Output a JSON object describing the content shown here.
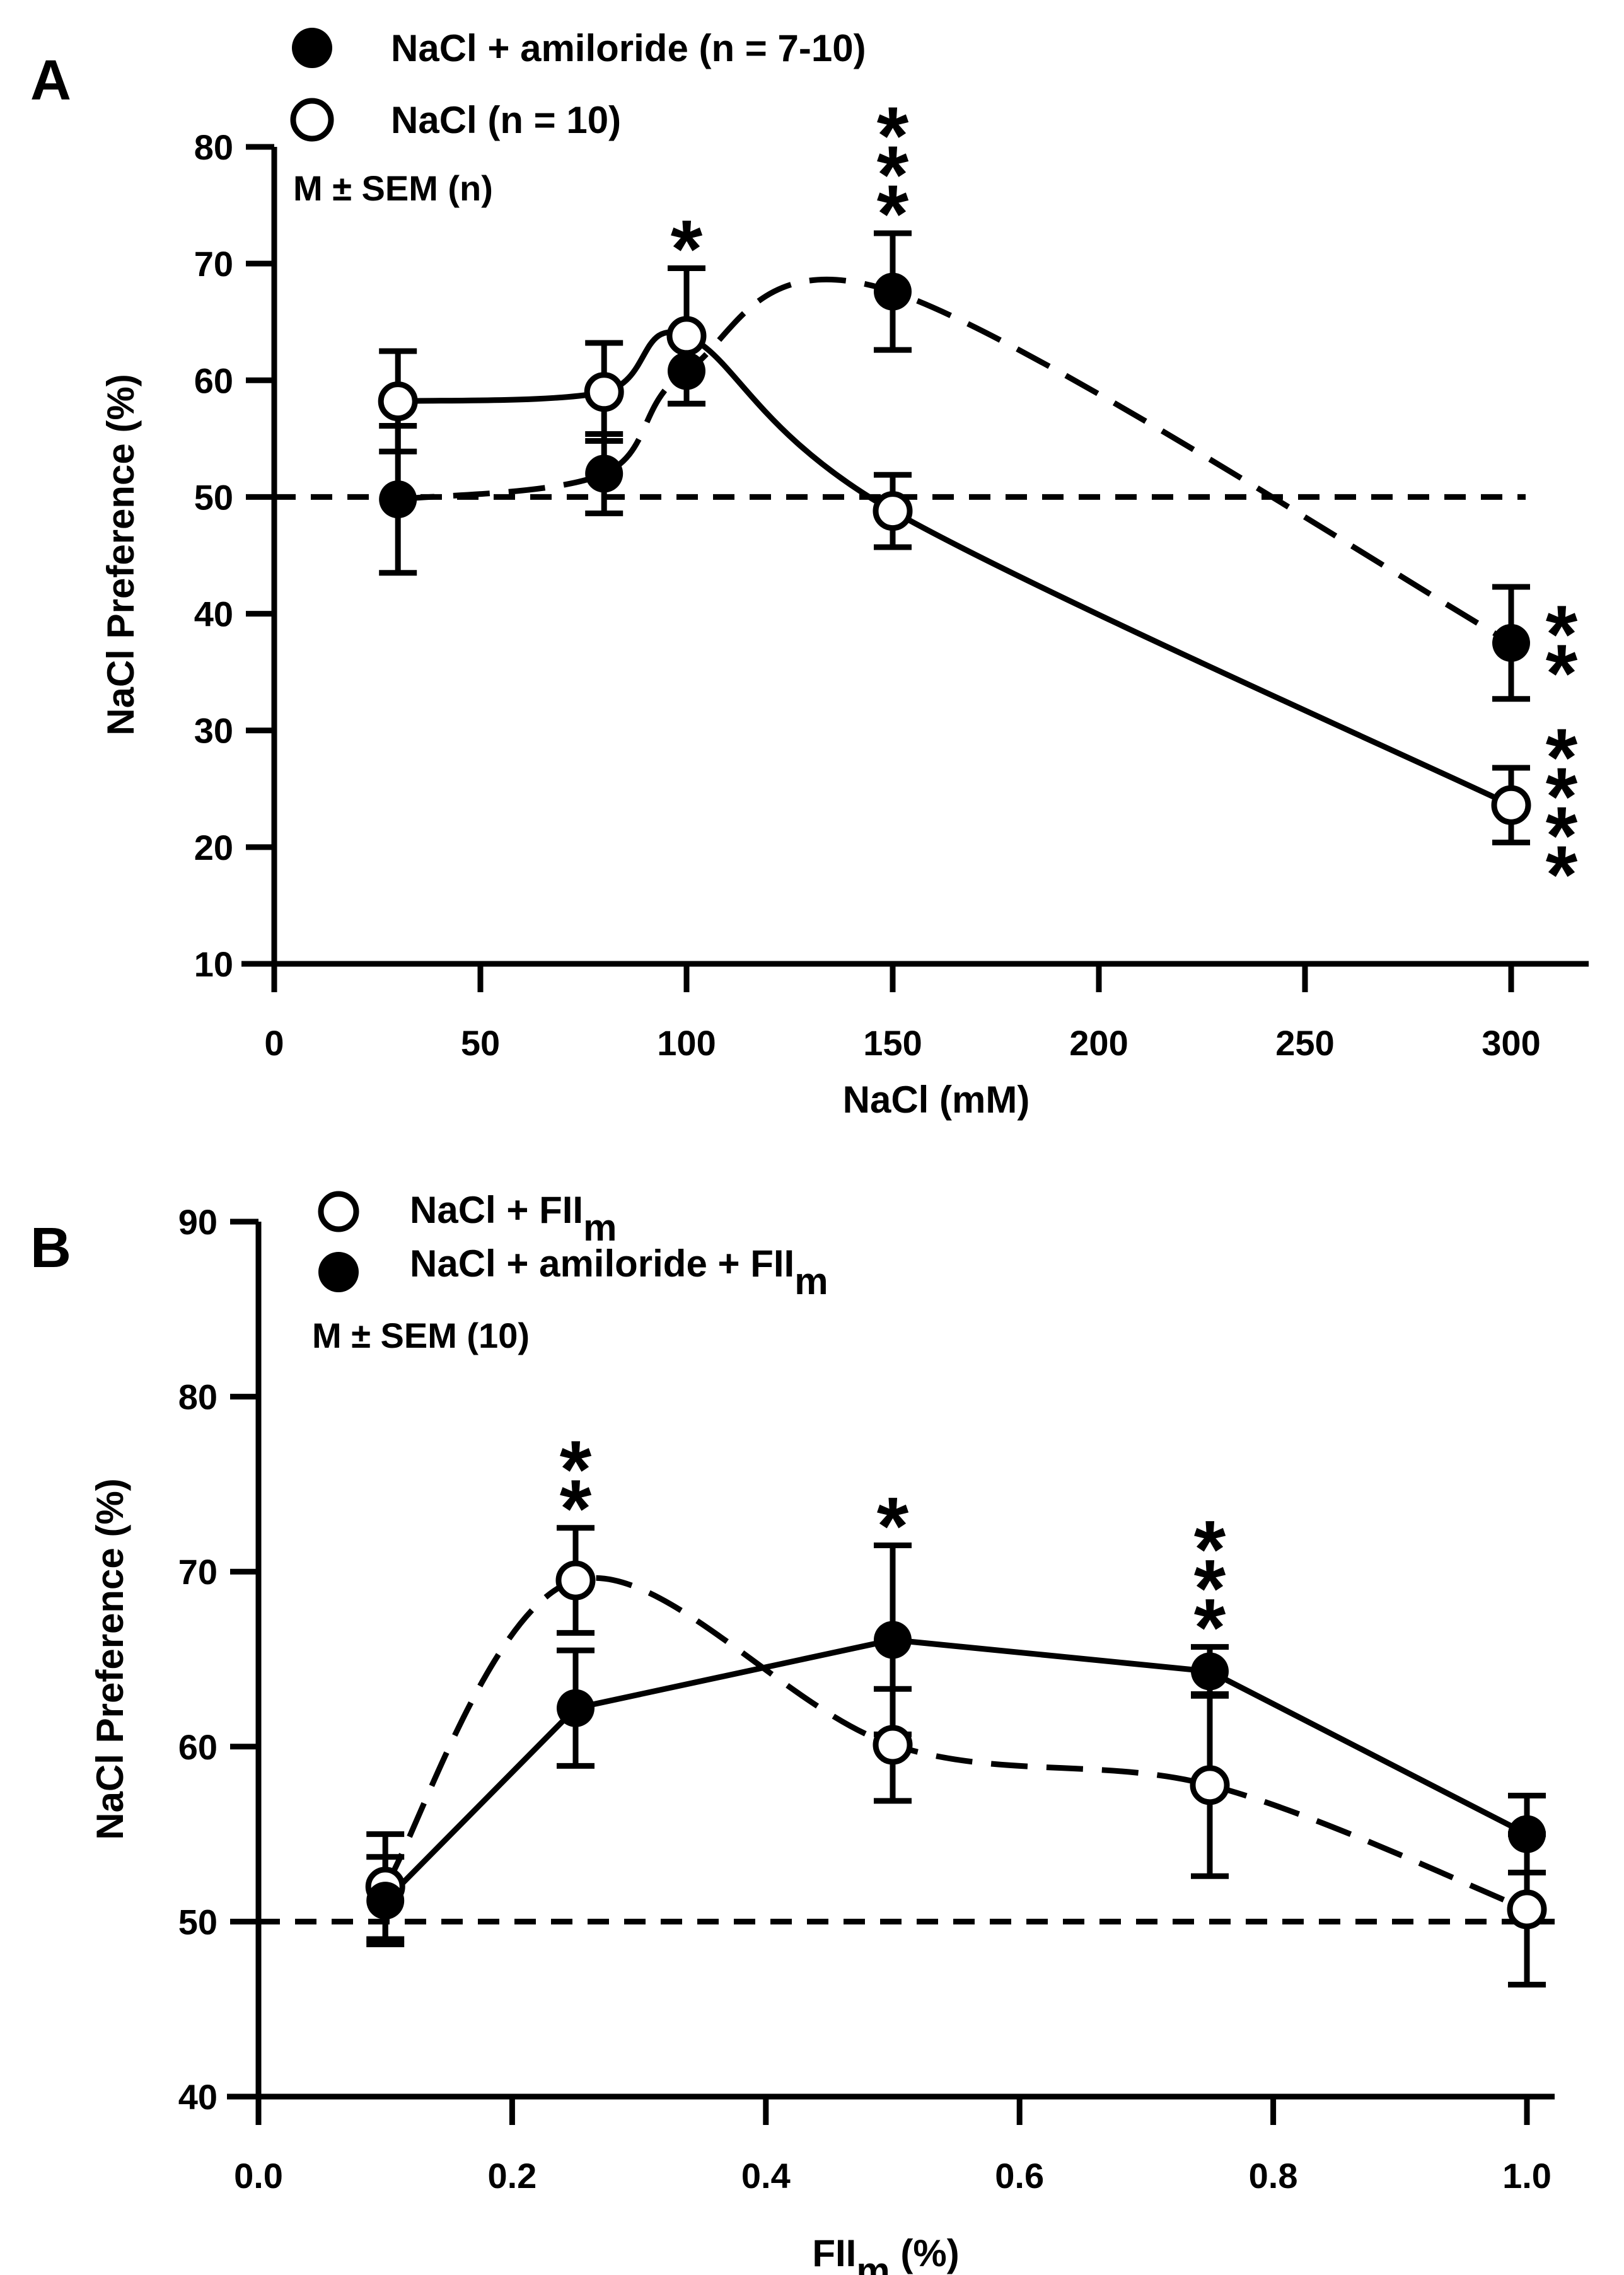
{
  "chart_data": [
    {
      "panel": "A",
      "type": "line",
      "xlabel": "NaCl (mM)",
      "ylabel": "NaCl Preference (%)",
      "xlim": [
        0,
        320
      ],
      "ylim": [
        10,
        80
      ],
      "xticks": [
        0,
        50,
        100,
        150,
        200,
        250,
        300
      ],
      "yticks": [
        10,
        20,
        30,
        40,
        50,
        60,
        70,
        80
      ],
      "xtick_labels": [
        "0",
        "50",
        "100",
        "150",
        "200",
        "250",
        "300"
      ],
      "ytick_labels": [
        "10",
        "20",
        "30",
        "40",
        "50",
        "60",
        "70",
        "80"
      ],
      "reference_line": 50,
      "note": "M ± SEM (n)",
      "series": [
        {
          "name": "NaCl + amiloride (n = 7-10)",
          "marker": "filled",
          "line": "dashed-curve",
          "x": [
            30,
            80,
            100,
            150,
            300
          ],
          "y": [
            49.8,
            52.0,
            60.8,
            67.6,
            37.5
          ],
          "err": [
            6.3,
            3.4,
            2.8,
            5.0,
            4.8
          ]
        },
        {
          "name": "NaCl (n = 10)",
          "marker": "open",
          "line": "solid-curve",
          "x": [
            30,
            80,
            100,
            150,
            300
          ],
          "y": [
            58.2,
            59.0,
            63.8,
            48.8,
            23.6
          ],
          "err": [
            4.3,
            4.2,
            5.8,
            3.1,
            3.2
          ]
        }
      ],
      "annotations": [
        {
          "x": 100,
          "text": "*",
          "count": 1
        },
        {
          "x": 150,
          "text": "*",
          "count": 3
        },
        {
          "x": 300,
          "text": "*",
          "count": 2,
          "side": "right"
        },
        {
          "x": 300,
          "text": "*",
          "count": 4,
          "side": "right"
        }
      ]
    },
    {
      "panel": "B",
      "type": "line",
      "xlabel": "FII",
      "xlabel_sub": "m",
      "xlabel_suffix": " (%)",
      "ylabel": "NaCl Preference (%)",
      "xlim": [
        0.0,
        1.05
      ],
      "ylim": [
        40,
        90
      ],
      "xticks": [
        0.0,
        0.2,
        0.4,
        0.6,
        0.8,
        1.0
      ],
      "yticks": [
        40,
        50,
        60,
        70,
        80,
        90
      ],
      "xtick_labels": [
        "0.0",
        "0.2",
        "0.4",
        "0.6",
        "0.8",
        "1.0"
      ],
      "ytick_labels": [
        "40",
        "50",
        "60",
        "70",
        "80",
        "90"
      ],
      "reference_line": 50,
      "note": "M ± SEM (10)",
      "series": [
        {
          "name": "NaCl + FII",
          "name_sub": "m",
          "marker": "open",
          "line": "dashed-curve",
          "x": [
            0.1,
            0.25,
            0.5,
            0.75,
            1.0
          ],
          "y": [
            52.0,
            69.5,
            60.1,
            57.8,
            50.7
          ],
          "err": [
            3.0,
            3.0,
            3.2,
            5.2,
            4.3
          ]
        },
        {
          "name": "NaCl + amiloride + FII",
          "name_sub": "m",
          "marker": "filled",
          "line": "solid",
          "x": [
            0.1,
            0.25,
            0.5,
            0.75,
            1.0
          ],
          "y": [
            51.2,
            62.2,
            66.1,
            64.3,
            55.0
          ],
          "err": [
            2.5,
            3.3,
            5.4,
            1.4,
            2.2
          ]
        }
      ],
      "annotations": [
        {
          "x": 0.25,
          "text": "*",
          "count": 2
        },
        {
          "x": 0.5,
          "text": "*",
          "count": 1
        },
        {
          "x": 0.75,
          "text": "*",
          "count": 3
        }
      ]
    }
  ]
}
